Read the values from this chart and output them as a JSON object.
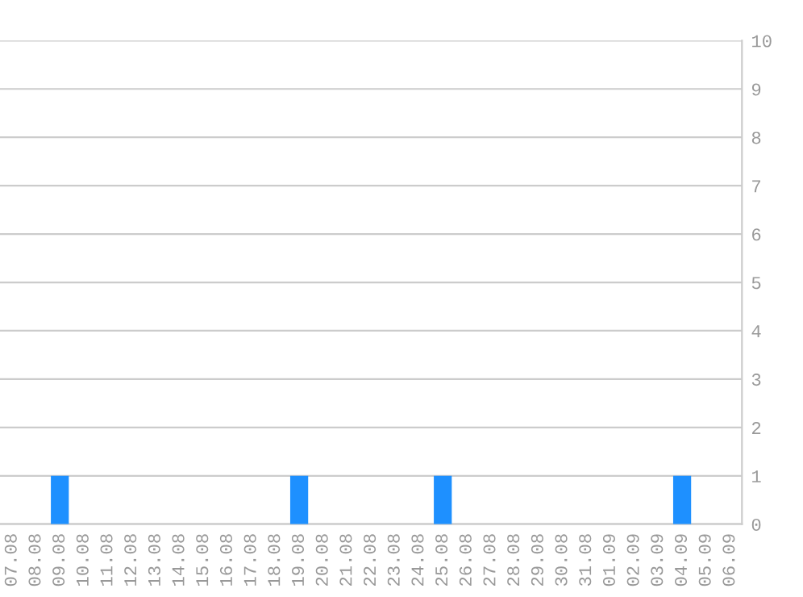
{
  "chart_data": {
    "type": "bar",
    "categories": [
      "07.08",
      "08.08",
      "09.08",
      "10.08",
      "11.08",
      "12.08",
      "13.08",
      "14.08",
      "15.08",
      "16.08",
      "17.08",
      "18.08",
      "19.08",
      "20.08",
      "21.08",
      "22.08",
      "23.08",
      "24.08",
      "25.08",
      "26.08",
      "27.08",
      "28.08",
      "29.08",
      "30.08",
      "31.08",
      "01.09",
      "02.09",
      "03.09",
      "04.09",
      "05.09",
      "06.09"
    ],
    "values": [
      0,
      0,
      1,
      0,
      0,
      0,
      0,
      0,
      0,
      0,
      0,
      0,
      1,
      0,
      0,
      0,
      0,
      0,
      1,
      0,
      0,
      0,
      0,
      0,
      0,
      0,
      0,
      0,
      1,
      0,
      0
    ],
    "color": "#1e90ff",
    "ylim": [
      0,
      10
    ],
    "yticks": [
      0,
      1,
      2,
      3,
      4,
      5,
      6,
      7,
      8,
      9,
      10
    ],
    "grid": "y",
    "legend": false
  }
}
